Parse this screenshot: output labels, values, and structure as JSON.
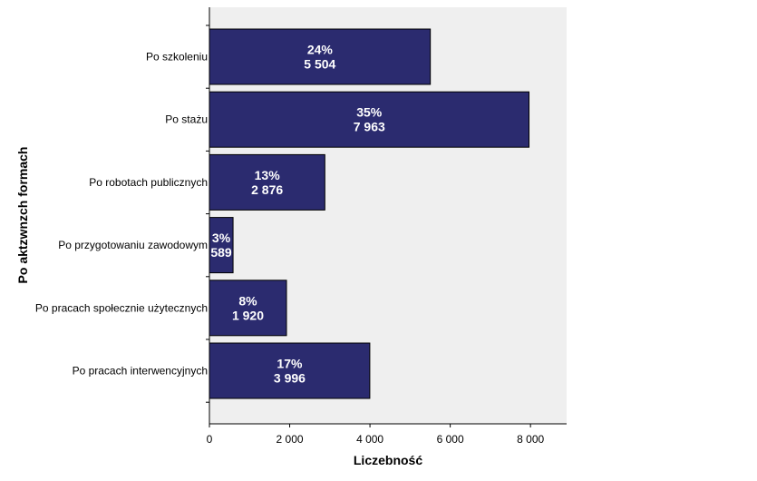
{
  "chart_data": {
    "type": "bar",
    "orientation": "horizontal",
    "categories": [
      "Po szkoleniu",
      "Po stażu",
      "Po robotach publicznych",
      "Po przygotowaniu zawodowym",
      "Po pracach społecznie użytecznych",
      "Po pracach interwencyjnych"
    ],
    "values": [
      5504,
      7963,
      2876,
      589,
      1920,
      3996
    ],
    "value_labels": [
      "5 504",
      "7 963",
      "2 876",
      "589",
      "1 920",
      "3 996"
    ],
    "percent_labels": [
      "24%",
      "35%",
      "13%",
      "3%",
      "8%",
      "17%"
    ],
    "xlabel": "Liczebność",
    "ylabel": "Po aktzwnzch formach",
    "xlim": [
      0,
      8900
    ],
    "xticks": [
      0,
      2000,
      4000,
      6000,
      8000
    ],
    "xtick_labels": [
      "0",
      "2 000",
      "4 000",
      "6 000",
      "8 000"
    ],
    "grid": false,
    "colors": {
      "bar_fill": "#2b2b6f",
      "bar_stroke": "#000000",
      "plot_background": "#efefef"
    }
  }
}
